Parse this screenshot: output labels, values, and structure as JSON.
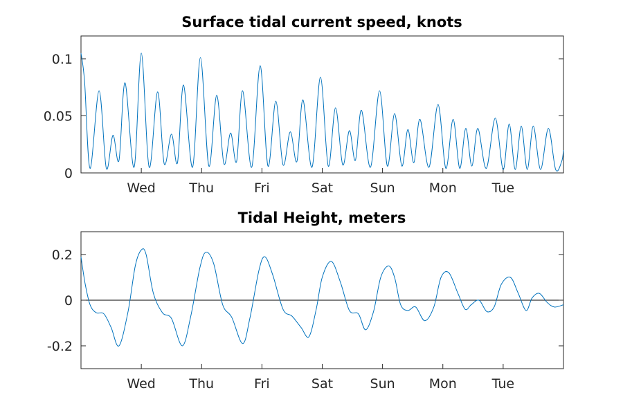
{
  "chart_data": [
    {
      "type": "line",
      "title": "Surface tidal current speed, knots",
      "xlabel": "",
      "ylabel": "",
      "xlim": [
        0,
        8
      ],
      "ylim": [
        0,
        0.12
      ],
      "x_ticks": [
        1,
        2,
        3,
        4,
        5,
        6,
        7
      ],
      "x_tick_labels": [
        "Wed",
        "Thu",
        "Fri",
        "Sat",
        "Sun",
        "Mon",
        "Tue"
      ],
      "y_ticks": [
        0,
        0.05,
        0.1
      ],
      "y_tick_labels": [
        "0",
        "0.05",
        "0.1"
      ],
      "grid": false,
      "color": "#0072BD",
      "series": [
        {
          "x": [
            0.0,
            0.06,
            0.15,
            0.3,
            0.42,
            0.53,
            0.63,
            0.73,
            0.88,
            1.0,
            1.13,
            1.27,
            1.38,
            1.5,
            1.6,
            1.7,
            1.85,
            1.98,
            2.12,
            2.25,
            2.37,
            2.48,
            2.58,
            2.68,
            2.83,
            2.97,
            3.1,
            3.23,
            3.35,
            3.47,
            3.58,
            3.68,
            3.83,
            3.97,
            4.1,
            4.22,
            4.34,
            4.45,
            4.55,
            4.65,
            4.8,
            4.95,
            5.08,
            5.2,
            5.32,
            5.42,
            5.52,
            5.62,
            5.77,
            5.92,
            6.05,
            6.17,
            6.28,
            6.38,
            6.48,
            6.58,
            6.72,
            6.87,
            7.0,
            7.1,
            7.2,
            7.3,
            7.4,
            7.5,
            7.62,
            7.75,
            7.87,
            7.97,
            8.0
          ],
          "y": [
            0.105,
            0.08,
            0.004,
            0.072,
            0.004,
            0.033,
            0.011,
            0.079,
            0.005,
            0.105,
            0.005,
            0.071,
            0.008,
            0.034,
            0.009,
            0.077,
            0.005,
            0.101,
            0.006,
            0.068,
            0.008,
            0.035,
            0.01,
            0.072,
            0.005,
            0.094,
            0.006,
            0.063,
            0.007,
            0.036,
            0.01,
            0.064,
            0.005,
            0.084,
            0.006,
            0.057,
            0.007,
            0.037,
            0.011,
            0.055,
            0.005,
            0.072,
            0.006,
            0.052,
            0.006,
            0.038,
            0.009,
            0.047,
            0.005,
            0.06,
            0.004,
            0.047,
            0.004,
            0.039,
            0.006,
            0.039,
            0.004,
            0.048,
            0.003,
            0.043,
            0.003,
            0.041,
            0.003,
            0.041,
            0.003,
            0.039,
            0.003,
            0.01,
            0.02
          ]
        }
      ]
    },
    {
      "type": "line",
      "title": "Tidal Height, meters",
      "xlabel": "",
      "ylabel": "",
      "xlim": [
        0,
        8
      ],
      "ylim": [
        -0.3,
        0.3
      ],
      "x_ticks": [
        1,
        2,
        3,
        4,
        5,
        6,
        7
      ],
      "x_tick_labels": [
        "Wed",
        "Thu",
        "Fri",
        "Sat",
        "Sun",
        "Mon",
        "Tue"
      ],
      "y_ticks": [
        -0.2,
        0,
        0.2
      ],
      "y_tick_labels": [
        "-0.2",
        "0",
        "0.2"
      ],
      "zero_line": true,
      "grid": false,
      "color": "#0072BD",
      "series": [
        {
          "x": [
            0.0,
            0.07,
            0.15,
            0.25,
            0.38,
            0.5,
            0.63,
            0.78,
            0.9,
            1.0,
            1.08,
            1.2,
            1.35,
            1.5,
            1.68,
            1.82,
            1.97,
            2.07,
            2.2,
            2.35,
            2.5,
            2.68,
            2.8,
            2.95,
            3.05,
            3.18,
            3.35,
            3.5,
            3.65,
            3.78,
            3.9,
            4.0,
            4.15,
            4.3,
            4.45,
            4.6,
            4.72,
            4.85,
            4.97,
            5.1,
            5.2,
            5.3,
            5.42,
            5.55,
            5.7,
            5.85,
            5.97,
            6.1,
            6.25,
            6.37,
            6.47,
            6.6,
            6.73,
            6.85,
            6.97,
            7.12,
            7.25,
            7.38,
            7.48,
            7.6,
            7.73,
            7.85,
            8.0
          ],
          "y": [
            0.19,
            0.07,
            -0.02,
            -0.055,
            -0.06,
            -0.12,
            -0.2,
            -0.05,
            0.15,
            0.22,
            0.2,
            0.03,
            -0.055,
            -0.08,
            -0.2,
            -0.07,
            0.14,
            0.21,
            0.16,
            -0.02,
            -0.075,
            -0.19,
            -0.08,
            0.13,
            0.19,
            0.11,
            -0.04,
            -0.07,
            -0.12,
            -0.16,
            -0.04,
            0.1,
            0.17,
            0.08,
            -0.045,
            -0.06,
            -0.13,
            -0.05,
            0.1,
            0.15,
            0.1,
            -0.02,
            -0.045,
            -0.03,
            -0.09,
            -0.03,
            0.1,
            0.12,
            0.03,
            -0.04,
            -0.02,
            0.0,
            -0.05,
            -0.03,
            0.07,
            0.1,
            0.03,
            -0.045,
            0.01,
            0.03,
            -0.01,
            -0.03,
            -0.02
          ]
        }
      ]
    }
  ]
}
